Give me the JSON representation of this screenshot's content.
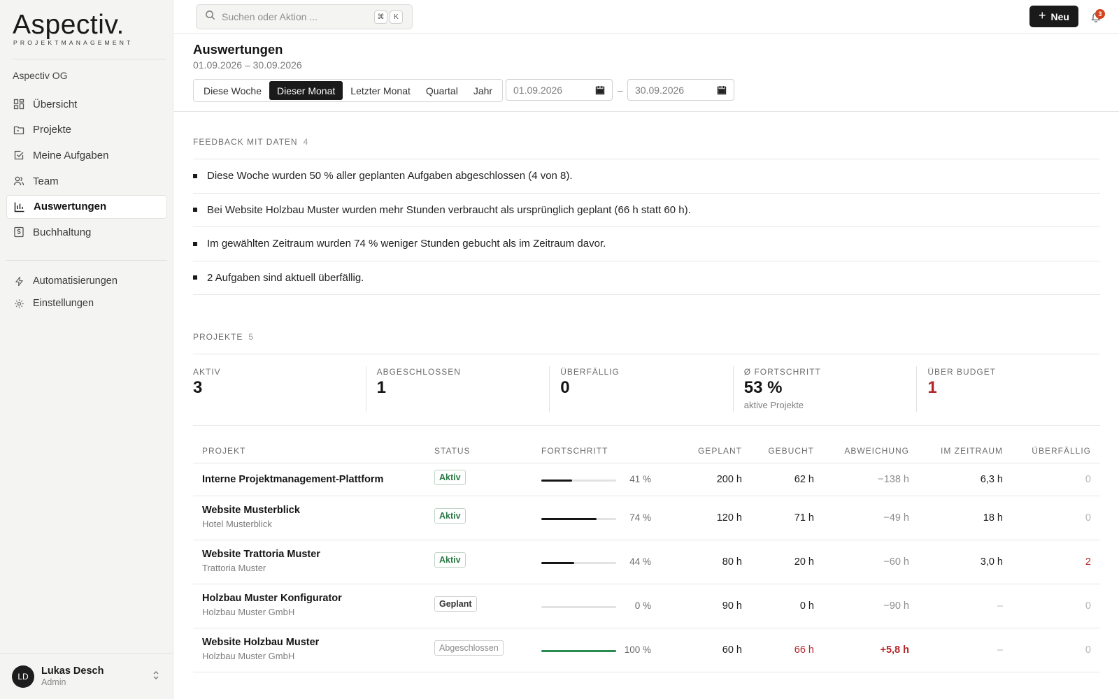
{
  "brand": {
    "logo_main": "Aspectiv.",
    "logo_sub": "PROJEKTMANAGEMENT"
  },
  "sidebar": {
    "org": "Aspectiv OG",
    "items": [
      {
        "label": "Übersicht",
        "icon": "dashboard-icon"
      },
      {
        "label": "Projekte",
        "icon": "folder-icon"
      },
      {
        "label": "Meine Aufgaben",
        "icon": "checkbox-icon"
      },
      {
        "label": "Team",
        "icon": "users-icon"
      },
      {
        "label": "Auswertungen",
        "icon": "bar-chart-icon",
        "active": true
      },
      {
        "label": "Buchhaltung",
        "icon": "receipt-icon"
      }
    ],
    "secondary": [
      {
        "label": "Automatisierungen",
        "icon": "lightning-icon"
      },
      {
        "label": "Einstellungen",
        "icon": "gear-icon"
      }
    ],
    "user": {
      "initials": "LD",
      "name": "Lukas Desch",
      "role": "Admin"
    }
  },
  "topbar": {
    "search_placeholder": "Suchen oder Aktion ...",
    "shortcut": [
      "⌘",
      "K"
    ],
    "new_label": "Neu",
    "notifications": "3"
  },
  "header": {
    "title": "Auswertungen",
    "range": "01.09.2026 – 30.09.2026",
    "periods": [
      "Diese Woche",
      "Dieser Monat",
      "Letzter Monat",
      "Quartal",
      "Jahr"
    ],
    "active_period": "Dieser Monat",
    "date_from": "01.09.2026",
    "date_to": "30.09.2026",
    "date_sep": "–"
  },
  "feedback": {
    "label": "FEEDBACK MIT DATEN",
    "count": "4",
    "items": [
      "Diese Woche wurden 50 % aller geplanten Aufgaben abgeschlossen (4 von 8).",
      "Bei Website Holzbau Muster wurden mehr Stunden verbraucht als ursprünglich geplant (66 h statt 60 h).",
      "Im gewählten Zeitraum wurden 74 % weniger Stunden gebucht als im Zeitraum davor.",
      "2 Aufgaben sind aktuell überfällig."
    ]
  },
  "projects": {
    "label": "PROJEKTE",
    "count": "5",
    "kpis": [
      {
        "label": "AKTIV",
        "value": "3",
        "sub": ""
      },
      {
        "label": "ABGESCHLOSSEN",
        "value": "1",
        "sub": ""
      },
      {
        "label": "ÜBERFÄLLIG",
        "value": "0",
        "sub": ""
      },
      {
        "label": "Ø FORTSCHRITT",
        "value": "53 %",
        "sub": "aktive Projekte"
      },
      {
        "label": "ÜBER BUDGET",
        "value": "1",
        "sub": "",
        "color": "#b2262a"
      }
    ],
    "columns": [
      "PROJEKT",
      "STATUS",
      "FORTSCHRITT",
      "GEPLANT",
      "GEBUCHT",
      "ABWEICHUNG",
      "IM ZEITRAUM",
      "ÜBERFÄLLIG"
    ],
    "rows": [
      {
        "name": "Interne Projektmanagement-Plattform",
        "client": "",
        "status": "Aktiv",
        "progress": 0.41,
        "progress_label": "41 %",
        "planned": "200 h",
        "booked": "62 h",
        "deviation": "−138 h",
        "period": "6,3 h",
        "overdue": "0"
      },
      {
        "name": "Website Musterblick",
        "client": "Hotel Musterblick",
        "status": "Aktiv",
        "progress": 0.74,
        "progress_label": "74 %",
        "planned": "120 h",
        "booked": "71 h",
        "deviation": "−49 h",
        "period": "18 h",
        "overdue": "0"
      },
      {
        "name": "Website Trattoria Muster",
        "client": "Trattoria Muster",
        "status": "Aktiv",
        "progress": 0.44,
        "progress_label": "44 %",
        "planned": "80 h",
        "booked": "20 h",
        "deviation": "−60 h",
        "period": "3,0 h",
        "overdue": "2"
      },
      {
        "name": "Holzbau Muster Konfigurator",
        "client": "Holzbau Muster GmbH",
        "status": "Geplant",
        "progress": 0.0,
        "progress_label": "0 %",
        "planned": "90 h",
        "booked": "0 h",
        "deviation": "−90 h",
        "period": "–",
        "overdue": "0"
      },
      {
        "name": "Website Holzbau Muster",
        "client": "Holzbau Muster GmbH",
        "status": "Abgeschlossen",
        "progress": 1.0,
        "progress_label": "100 %",
        "planned": "60 h",
        "booked": "66 h",
        "deviation": "+5,8 h",
        "period": "–",
        "overdue": "0"
      }
    ]
  }
}
